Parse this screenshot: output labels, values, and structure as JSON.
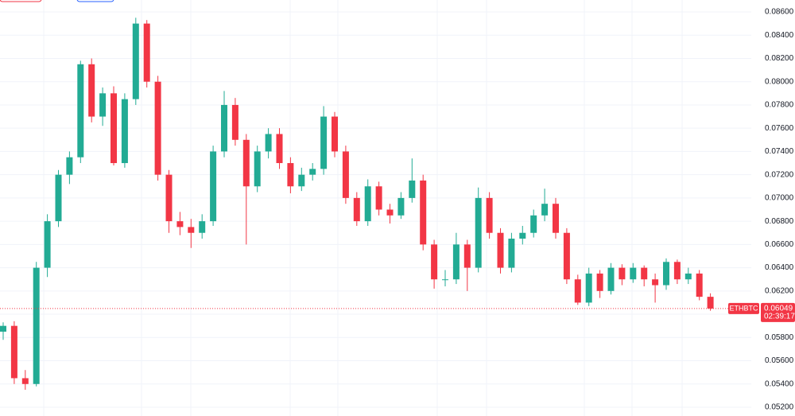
{
  "chart_data": {
    "type": "candlestick",
    "up_color": "#22ab94",
    "down_color": "#f23645",
    "grid": true,
    "ylim": [
      0.052,
      0.086
    ],
    "yticks": [
      {
        "value": 0.052,
        "label": "0.05200"
      },
      {
        "value": 0.054,
        "label": "0.05400"
      },
      {
        "value": 0.056,
        "label": "0.05600"
      },
      {
        "value": 0.058,
        "label": "0.05800"
      },
      {
        "value": 0.06,
        "label": "0.06000"
      },
      {
        "value": 0.062,
        "label": "0.06200"
      },
      {
        "value": 0.064,
        "label": "0.06400"
      },
      {
        "value": 0.066,
        "label": "0.06600"
      },
      {
        "value": 0.068,
        "label": "0.06800"
      },
      {
        "value": 0.07,
        "label": "0.07000"
      },
      {
        "value": 0.072,
        "label": "0.07200"
      },
      {
        "value": 0.074,
        "label": "0.07400"
      },
      {
        "value": 0.076,
        "label": "0.07600"
      },
      {
        "value": 0.078,
        "label": "0.07800"
      },
      {
        "value": 0.08,
        "label": "0.08000"
      },
      {
        "value": 0.082,
        "label": "0.08200"
      },
      {
        "value": 0.084,
        "label": "0.08400"
      },
      {
        "value": 0.086,
        "label": "0.08600"
      }
    ],
    "open": [
      0.0585,
      0.059,
      0.0545,
      0.054,
      0.064,
      0.068,
      0.072,
      0.0735,
      0.0815,
      0.077,
      0.079,
      0.073,
      0.0785,
      0.085,
      0.08,
      0.072,
      0.068,
      0.0675,
      0.067,
      0.068,
      0.074,
      0.078,
      0.075,
      0.071,
      0.074,
      0.0755,
      0.073,
      0.071,
      0.072,
      0.0725,
      0.077,
      0.074,
      0.07,
      0.068,
      0.071,
      0.069,
      0.0685,
      0.07,
      0.0715,
      0.066,
      0.063,
      0.063,
      0.066,
      0.064,
      0.07,
      0.067,
      0.064,
      0.0665,
      0.067,
      0.0685,
      0.0695,
      0.067,
      0.063,
      0.061,
      0.0635,
      0.062,
      0.064,
      0.063,
      0.064,
      0.063,
      0.0625,
      0.0645,
      0.063,
      0.0635,
      0.0615
    ],
    "high": [
      0.0593,
      0.0594,
      0.0552,
      0.0645,
      0.0686,
      0.0724,
      0.074,
      0.0818,
      0.082,
      0.0795,
      0.0796,
      0.079,
      0.0855,
      0.0853,
      0.0805,
      0.0724,
      0.0688,
      0.0682,
      0.0686,
      0.0745,
      0.0792,
      0.0786,
      0.0755,
      0.0745,
      0.076,
      0.076,
      0.0735,
      0.0726,
      0.073,
      0.0779,
      0.0774,
      0.0745,
      0.0705,
      0.0716,
      0.0714,
      0.0695,
      0.0705,
      0.0734,
      0.072,
      0.0664,
      0.0638,
      0.067,
      0.0664,
      0.0709,
      0.0705,
      0.0674,
      0.067,
      0.0676,
      0.069,
      0.0708,
      0.07,
      0.0674,
      0.0634,
      0.064,
      0.0638,
      0.0644,
      0.0643,
      0.0644,
      0.0642,
      0.0635,
      0.0648,
      0.0647,
      0.064,
      0.0638,
      0.0618
    ],
    "low": [
      0.0578,
      0.054,
      0.0535,
      0.0538,
      0.0632,
      0.0675,
      0.0712,
      0.073,
      0.0765,
      0.0762,
      0.0728,
      0.0726,
      0.078,
      0.0795,
      0.0715,
      0.067,
      0.0668,
      0.0657,
      0.0665,
      0.0676,
      0.0735,
      0.0745,
      0.066,
      0.0705,
      0.0734,
      0.0725,
      0.0704,
      0.0706,
      0.0715,
      0.072,
      0.0735,
      0.0695,
      0.0676,
      0.0676,
      0.0685,
      0.0678,
      0.0682,
      0.0696,
      0.0655,
      0.0622,
      0.0624,
      0.0626,
      0.062,
      0.0636,
      0.0665,
      0.0635,
      0.0636,
      0.066,
      0.0666,
      0.068,
      0.0665,
      0.0626,
      0.0608,
      0.0607,
      0.0614,
      0.0617,
      0.0625,
      0.0627,
      0.0624,
      0.061,
      0.0621,
      0.0626,
      0.0626,
      0.0612,
      0.0603
    ],
    "close": [
      0.059,
      0.0545,
      0.054,
      0.064,
      0.068,
      0.072,
      0.0735,
      0.0815,
      0.077,
      0.079,
      0.073,
      0.0785,
      0.085,
      0.08,
      0.072,
      0.068,
      0.0675,
      0.067,
      0.068,
      0.074,
      0.078,
      0.075,
      0.071,
      0.074,
      0.0755,
      0.073,
      0.071,
      0.072,
      0.0725,
      0.077,
      0.074,
      0.07,
      0.068,
      0.071,
      0.069,
      0.0685,
      0.07,
      0.0715,
      0.066,
      0.063,
      0.063,
      0.066,
      0.064,
      0.07,
      0.067,
      0.064,
      0.0665,
      0.067,
      0.0685,
      0.0695,
      0.067,
      0.063,
      0.061,
      0.0635,
      0.062,
      0.064,
      0.063,
      0.064,
      0.063,
      0.0625,
      0.0645,
      0.063,
      0.0635,
      0.0615,
      0.06049
    ],
    "last_price": {
      "symbol": "ETHBTC",
      "value": 0.06049,
      "countdown": "02:39:17"
    }
  }
}
